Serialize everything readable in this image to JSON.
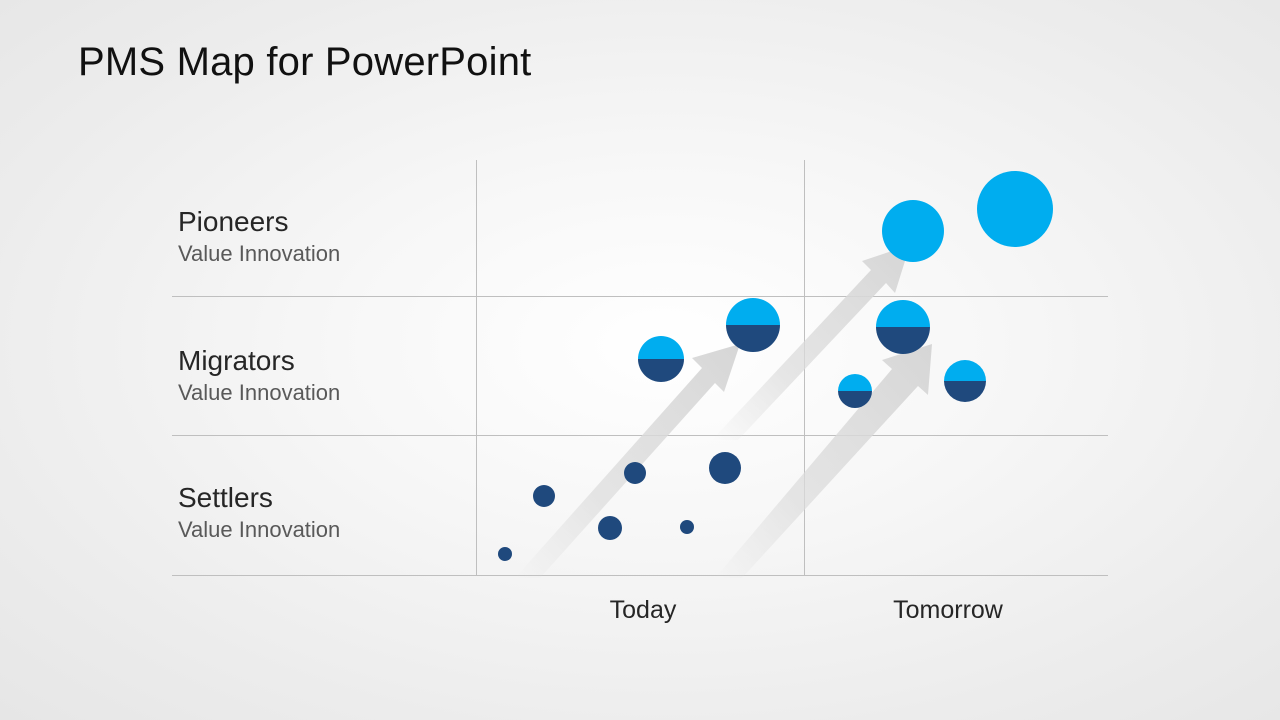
{
  "slide": {
    "title": "PMS Map for PowerPoint"
  },
  "rows": [
    {
      "title": "Pioneers",
      "subtitle": "Value Innovation"
    },
    {
      "title": "Migrators",
      "subtitle": "Value Innovation"
    },
    {
      "title": "Settlers",
      "subtitle": "Value Innovation"
    }
  ],
  "columns": [
    {
      "label": "Today"
    },
    {
      "label": "Tomorrow"
    }
  ],
  "colors": {
    "light_blue": "#00adef",
    "dark_blue": "#1f497d",
    "grid_line": "#bfbfbf",
    "arrow": "#d9d9d9"
  },
  "legend_note": ""
}
